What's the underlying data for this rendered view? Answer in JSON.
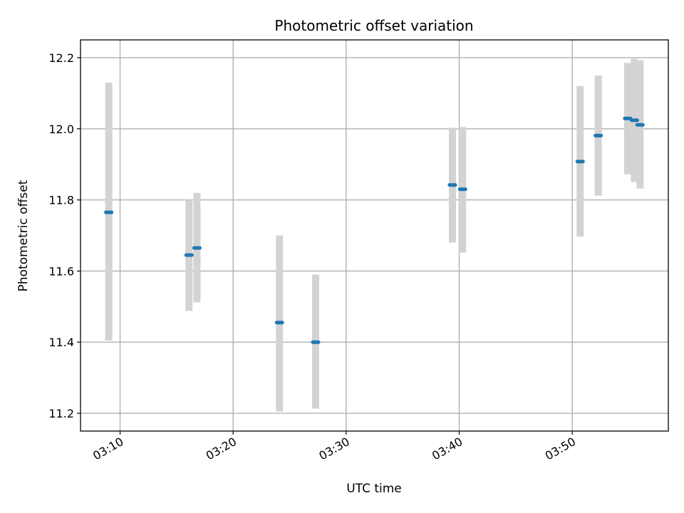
{
  "chart_data": {
    "type": "scatter",
    "title": "Photometric offset variation",
    "xlabel": "UTC time",
    "ylabel": "Photometric offset",
    "xlim": [
      6.5,
      58.5
    ],
    "ylim": [
      11.15,
      12.25
    ],
    "x_unit": "minutes after 03:00 UTC",
    "xticks": [
      {
        "value": 10,
        "label": "03:10"
      },
      {
        "value": 20,
        "label": "03:20"
      },
      {
        "value": 30,
        "label": "03:30"
      },
      {
        "value": 40,
        "label": "03:40"
      },
      {
        "value": 50,
        "label": "03:50"
      }
    ],
    "yticks": [
      {
        "value": 11.2,
        "label": "11.2"
      },
      {
        "value": 11.4,
        "label": "11.4"
      },
      {
        "value": 11.6,
        "label": "11.6"
      },
      {
        "value": 11.8,
        "label": "11.8"
      },
      {
        "value": 12.0,
        "label": "12.0"
      },
      {
        "value": 12.2,
        "label": "12.2"
      }
    ],
    "grid": true,
    "marker_color": "#1f77b4",
    "errorbar_color": "#d3d3d3",
    "points": [
      {
        "x": 9.0,
        "y": 11.765,
        "yerr_low": 11.405,
        "yerr_high": 12.13
      },
      {
        "x": 16.1,
        "y": 11.645,
        "yerr_low": 11.488,
        "yerr_high": 11.8
      },
      {
        "x": 16.8,
        "y": 11.665,
        "yerr_low": 11.512,
        "yerr_high": 11.82
      },
      {
        "x": 24.1,
        "y": 11.455,
        "yerr_low": 11.205,
        "yerr_high": 11.7
      },
      {
        "x": 27.3,
        "y": 11.4,
        "yerr_low": 11.213,
        "yerr_high": 11.59
      },
      {
        "x": 39.4,
        "y": 11.842,
        "yerr_low": 11.68,
        "yerr_high": 12.003
      },
      {
        "x": 40.3,
        "y": 11.83,
        "yerr_low": 11.652,
        "yerr_high": 12.005
      },
      {
        "x": 50.7,
        "y": 11.908,
        "yerr_low": 11.697,
        "yerr_high": 12.12
      },
      {
        "x": 52.3,
        "y": 11.981,
        "yerr_low": 11.812,
        "yerr_high": 12.15
      },
      {
        "x": 54.9,
        "y": 12.029,
        "yerr_low": 11.872,
        "yerr_high": 12.185
      },
      {
        "x": 55.5,
        "y": 12.024,
        "yerr_low": 11.85,
        "yerr_high": 12.197
      },
      {
        "x": 56.0,
        "y": 12.011,
        "yerr_low": 11.832,
        "yerr_high": 12.193
      }
    ]
  }
}
